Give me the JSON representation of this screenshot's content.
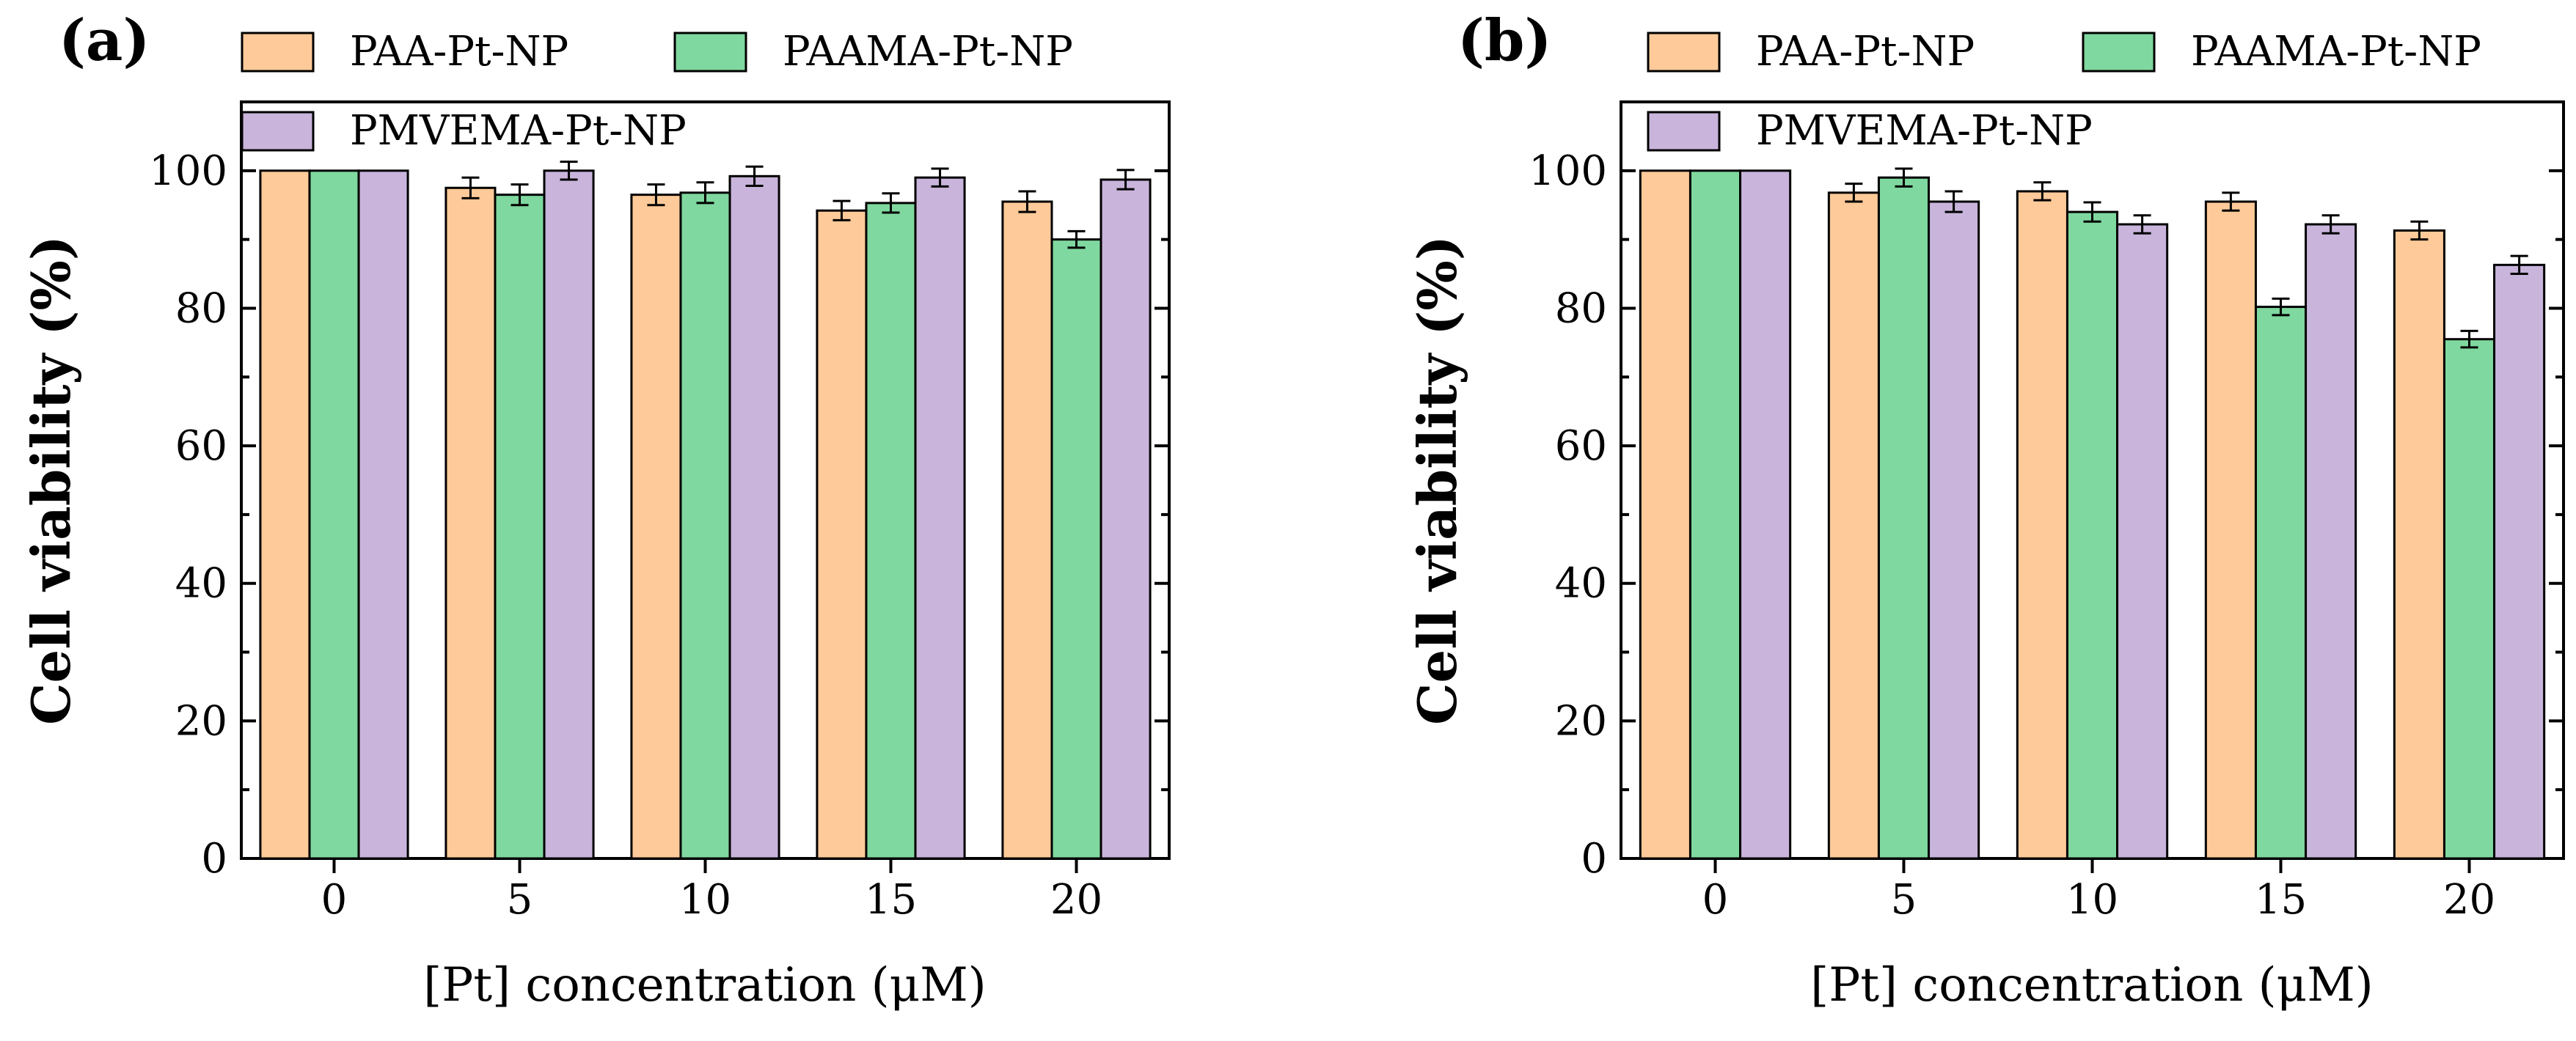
{
  "chart_data": [
    {
      "panel_label": "(a)",
      "type": "bar",
      "categories": [
        "0",
        "5",
        "10",
        "15",
        "20"
      ],
      "series": [
        {
          "name": "PAA-Pt-NP",
          "values": [
            100,
            97.5,
            96.5,
            94.2,
            95.5
          ],
          "errors": [
            0,
            1.5,
            1.5,
            1.4,
            1.5
          ],
          "color": "#FFCA99"
        },
        {
          "name": "PAAMA-Pt-NP",
          "values": [
            100,
            96.5,
            96.8,
            95.3,
            90.0
          ],
          "errors": [
            0,
            1.5,
            1.5,
            1.4,
            1.2
          ],
          "color": "#7FD89F"
        },
        {
          "name": "PMVEMA-Pt-NP",
          "values": [
            100,
            100.0,
            99.2,
            99.0,
            98.7
          ],
          "errors": [
            0,
            1.3,
            1.4,
            1.3,
            1.4
          ],
          "color": "#C9B4DB"
        }
      ],
      "xlabel": "[Pt] concentration (μM)",
      "ylabel": "Cell viability (%)",
      "ylim": [
        0,
        110
      ],
      "yticks": [
        "0",
        "20",
        "40",
        "60",
        "80",
        "100"
      ],
      "legend_position": "top"
    },
    {
      "panel_label": "(b)",
      "type": "bar",
      "categories": [
        "0",
        "5",
        "10",
        "15",
        "20"
      ],
      "series": [
        {
          "name": "PAA-Pt-NP",
          "values": [
            100,
            96.8,
            97.0,
            95.5,
            91.3
          ],
          "errors": [
            0,
            1.3,
            1.3,
            1.3,
            1.3
          ],
          "color": "#FFCA99"
        },
        {
          "name": "PAAMA-Pt-NP",
          "values": [
            100,
            99.0,
            94.0,
            80.2,
            75.5
          ],
          "errors": [
            0,
            1.3,
            1.4,
            1.2,
            1.2
          ],
          "color": "#7FD89F"
        },
        {
          "name": "PMVEMA-Pt-NP",
          "values": [
            100,
            95.5,
            92.2,
            92.2,
            86.3
          ],
          "errors": [
            0,
            1.5,
            1.3,
            1.3,
            1.3
          ],
          "color": "#C9B4DB"
        }
      ],
      "xlabel": "[Pt] concentration (μM)",
      "ylabel": "Cell viability (%)",
      "ylim": [
        0,
        110
      ],
      "yticks": [
        "0",
        "20",
        "40",
        "60",
        "80",
        "100"
      ],
      "legend_position": "top"
    }
  ]
}
